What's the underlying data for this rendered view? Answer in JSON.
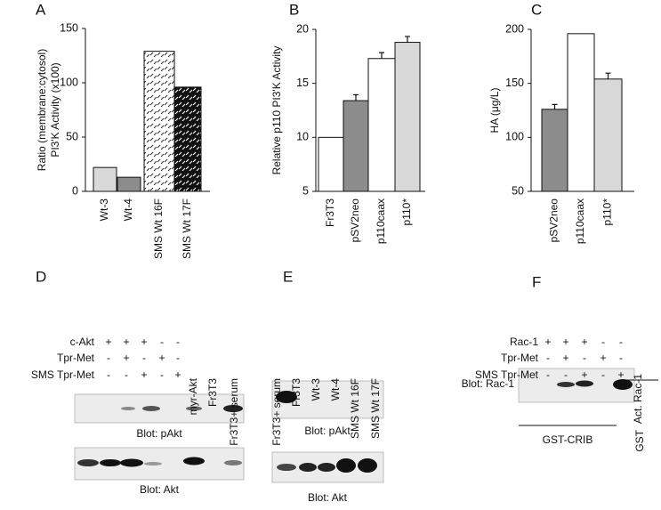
{
  "chart_data": [
    {
      "type": "bar",
      "panel": "A",
      "ylabel": [
        "Ratio (membrane:cytosol)",
        "PI3'K Activity (x100)"
      ],
      "categories": [
        "Wt-3",
        "Wt-4",
        "SMS Wt 16F",
        "SMS Wt 17F"
      ],
      "values": [
        22,
        13,
        129,
        96
      ],
      "colors": [
        "#d9d9d9",
        "#8c8c8c",
        "#ffffff",
        "#111111"
      ],
      "hatched": [
        false,
        false,
        true,
        true
      ],
      "ylim": [
        0,
        150
      ],
      "yticks": [
        0,
        50,
        100,
        150
      ]
    },
    {
      "type": "bar",
      "panel": "B",
      "ylabel": [
        "Relative p110 PI3'K Activity"
      ],
      "categories": [
        "Fr3T3",
        "pSV2neo",
        "p110caax",
        "p110*"
      ],
      "values": [
        10,
        13.4,
        17.3,
        18.8
      ],
      "errors": [
        null,
        0.3,
        0.3,
        0.3
      ],
      "colors": [
        "#ffffff",
        "#8c8c8c",
        "#ffffff",
        "#d9d9d9"
      ],
      "hatched": [
        false,
        false,
        false,
        false
      ],
      "ylim": [
        5,
        20
      ],
      "yticks": [
        5,
        10,
        15,
        20
      ]
    },
    {
      "type": "bar",
      "panel": "C",
      "ylabel": [
        "HA (μg/L)"
      ],
      "categories": [
        "pSV2neo",
        "p110caax",
        "p110*"
      ],
      "values": [
        126,
        196,
        154
      ],
      "errors": [
        2,
        null,
        3
      ],
      "colors": [
        "#8c8c8c",
        "#ffffff",
        "#d9d9d9"
      ],
      "hatched": [
        false,
        false,
        false
      ],
      "ylim": [
        50,
        200
      ],
      "yticks": [
        50,
        100,
        150,
        200
      ]
    }
  ],
  "blots": [
    {
      "panel": "D",
      "row_labels": [
        "c-Akt",
        "Tpr-Met",
        "SMS Tpr-Met"
      ],
      "signs": [
        [
          "+",
          "+",
          "+",
          "-",
          "-"
        ],
        [
          "-",
          "+",
          "-",
          "+",
          "-"
        ],
        [
          "-",
          "-",
          "+",
          "-",
          "+"
        ]
      ],
      "lane_labels": [
        "myr-Akt",
        "Fr3T3",
        "Fr3T3+ serum"
      ],
      "blot_labels": [
        "Blot: pAkt",
        "Blot: Akt"
      ]
    },
    {
      "panel": "E",
      "lane_labels": [
        "Fr3T3+ serum",
        "Fr3T3",
        "Wt-3",
        "Wt-4",
        "SMS Wt 16F",
        "SMS Wt 17F"
      ],
      "blot_labels": [
        "Blot: pAkt",
        "Blot: Akt"
      ]
    },
    {
      "panel": "F",
      "row_labels": [
        "Rac-1",
        "Tpr-Met",
        "SMS Tpr-Met"
      ],
      "signs": [
        [
          "+",
          "+",
          "+",
          "-",
          "-"
        ],
        [
          "-",
          "+",
          "-",
          "+",
          "-"
        ],
        [
          "-",
          "-",
          "+",
          "-",
          "+"
        ]
      ],
      "lane_labels": [
        "Act. Rac-1"
      ],
      "blot_labels": [
        "Blot: Rac-1"
      ],
      "group_labels": [
        "GST-CRIB",
        "GST"
      ]
    }
  ]
}
